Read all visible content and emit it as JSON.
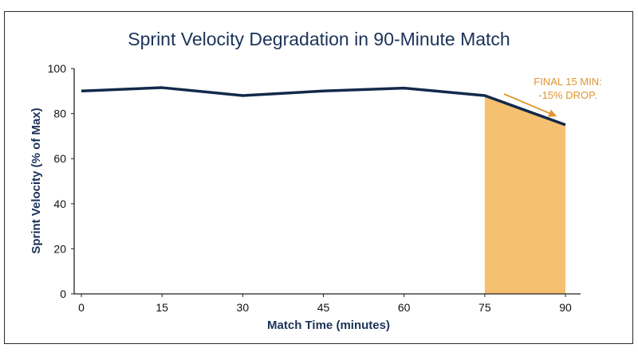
{
  "chart_data": {
    "type": "line",
    "title": "Sprint Velocity Degradation in 90-Minute Match",
    "xlabel": "Match Time (minutes)",
    "ylabel": "Sprint Velocity (% of Max)",
    "x": [
      0,
      15,
      30,
      45,
      60,
      75,
      90
    ],
    "series": [
      {
        "values": [
          90,
          91.5,
          88,
          90,
          91.3,
          88,
          75
        ]
      }
    ],
    "xlim": [
      0,
      90
    ],
    "ylim": [
      0,
      100
    ],
    "xticks": [
      0,
      15,
      30,
      45,
      60,
      75,
      90
    ],
    "yticks": [
      0,
      20,
      40,
      60,
      80,
      100
    ],
    "grid": false,
    "highlight": {
      "x_start": 75,
      "x_end": 90
    },
    "annotation": {
      "lines": [
        "FINAL 15 MIN:",
        "-15% DROP."
      ],
      "target": {
        "x": 89,
        "y": 78
      }
    },
    "colors": {
      "line": "#13294b",
      "highlight": "#f5c070",
      "annotation": "#e0962e",
      "title": "#1b3358"
    }
  }
}
